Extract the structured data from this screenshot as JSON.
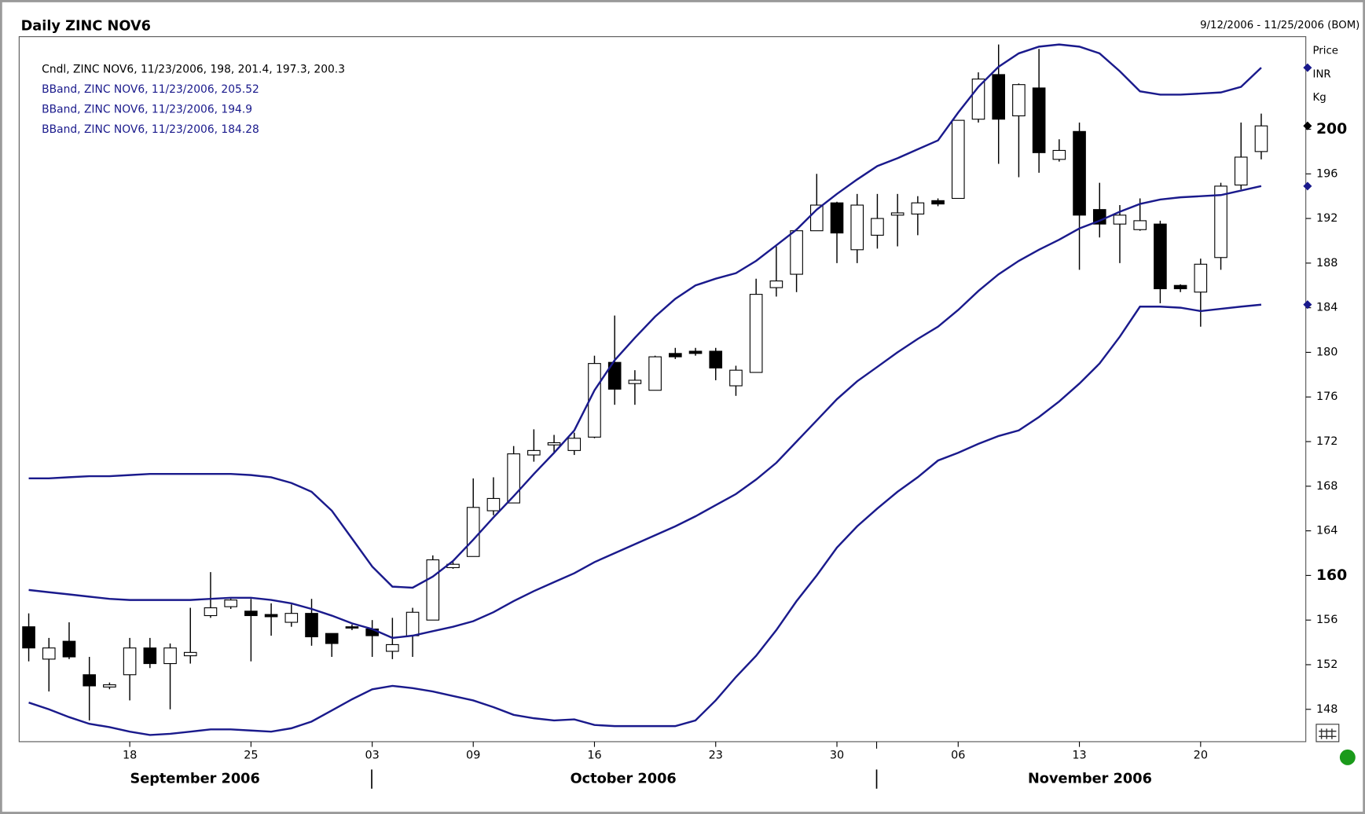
{
  "chart_data": {
    "type": "candlestick",
    "title": "Daily ZINC NOV6",
    "subtitle": "9/12/2006 - 11/25/2006 (BOM)",
    "y_axis_label": [
      "Price",
      "INR",
      "Kg"
    ],
    "legend": [
      "Cndl, ZINC NOV6, 11/23/2006, 198, 201.4, 197.3, 200.3",
      "BBand, ZINC NOV6, 11/23/2006, 205.52",
      "BBand, ZINC NOV6, 11/23/2006, 194.9",
      "BBand, ZINC NOV6, 11/23/2006, 184.28"
    ],
    "months": [
      "September 2006",
      "October 2006",
      "November 2006"
    ],
    "categories": [
      null,
      null,
      null,
      null,
      null,
      "18",
      null,
      null,
      null,
      null,
      null,
      "25",
      null,
      null,
      null,
      null,
      null,
      "03",
      null,
      null,
      null,
      null,
      "09",
      null,
      null,
      null,
      null,
      null,
      "16",
      null,
      null,
      null,
      null,
      null,
      "23",
      null,
      null,
      null,
      null,
      null,
      "30",
      null,
      null,
      null,
      null,
      null,
      "06",
      null,
      null,
      null,
      null,
      null,
      "13",
      null,
      null,
      null,
      null,
      null,
      "20",
      null,
      null,
      null
    ],
    "open": [
      155.4,
      152.5,
      154.1,
      151.1,
      150.0,
      151.1,
      153.5,
      152.1,
      152.8,
      156.4,
      157.2,
      156.8,
      156.5,
      155.8,
      156.6,
      154.8,
      155.4,
      155.2,
      153.2,
      154.6,
      156.0,
      160.7,
      161.7,
      165.8,
      166.5,
      170.8,
      171.7,
      171.2,
      172.4,
      179.1,
      177.2,
      176.6,
      179.9,
      180.1,
      180.1,
      177.0,
      178.2,
      185.8,
      187.0,
      190.9,
      193.4,
      189.2,
      190.5,
      192.3,
      192.4,
      193.6,
      193.8,
      200.9,
      204.9,
      201.2,
      203.7,
      197.3,
      199.8,
      192.8,
      191.5,
      191.0,
      191.5,
      186.0,
      185.4,
      188.5,
      195.0,
      198
    ],
    "high": [
      156.6,
      154.4,
      155.8,
      152.7,
      150.4,
      154.4,
      154.4,
      153.9,
      157.1,
      160.3,
      157.9,
      157.9,
      157.5,
      157.4,
      157.9,
      154.8,
      155.6,
      156.0,
      156.2,
      157.1,
      161.8,
      161.2,
      168.7,
      168.8,
      171.6,
      173.1,
      172.6,
      172.8,
      179.7,
      183.3,
      178.4,
      179.7,
      180.4,
      180.4,
      180.4,
      178.8,
      186.6,
      189.5,
      191.1,
      196.0,
      193.5,
      194.2,
      194.2,
      194.2,
      194.0,
      193.8,
      200.8,
      205.1,
      207.6,
      204.1,
      207.2,
      199.1,
      200.6,
      195.2,
      193.2,
      193.8,
      191.8,
      186.1,
      188.4,
      195.2,
      200.6,
      201.4
    ],
    "low": [
      152.3,
      149.6,
      152.5,
      147.0,
      149.8,
      148.8,
      151.7,
      148.0,
      152.1,
      156.2,
      157.0,
      152.3,
      154.6,
      155.4,
      153.7,
      152.7,
      155.1,
      152.7,
      152.5,
      152.7,
      156.0,
      160.6,
      161.7,
      165.4,
      166.5,
      170.2,
      171.0,
      170.8,
      172.3,
      175.3,
      175.3,
      176.6,
      179.4,
      179.7,
      177.5,
      176.1,
      178.2,
      185.0,
      185.4,
      190.9,
      188.0,
      188.0,
      189.3,
      189.5,
      190.5,
      193.1,
      193.8,
      200.6,
      196.9,
      195.7,
      196.1,
      197.1,
      187.4,
      190.3,
      188.0,
      190.9,
      184.4,
      185.4,
      182.3,
      187.4,
      194.6,
      197.3
    ],
    "close": [
      153.5,
      153.5,
      152.7,
      150.1,
      150.2,
      153.5,
      152.1,
      153.5,
      153.1,
      157.1,
      157.8,
      156.4,
      156.3,
      156.6,
      154.5,
      153.9,
      155.3,
      154.6,
      153.8,
      156.7,
      161.4,
      161.0,
      166.1,
      166.9,
      170.9,
      171.2,
      171.9,
      172.3,
      179.0,
      176.7,
      177.5,
      179.6,
      179.6,
      179.9,
      178.6,
      178.4,
      185.2,
      186.4,
      190.9,
      193.2,
      190.7,
      193.2,
      192.0,
      192.5,
      193.4,
      193.3,
      200.8,
      204.5,
      200.9,
      204.0,
      197.9,
      198.1,
      192.3,
      191.5,
      192.3,
      191.8,
      185.7,
      185.7,
      187.9,
      194.9,
      197.5,
      200.3
    ],
    "up_color": "#ffffff",
    "down_color": "#000000",
    "bands": [
      {
        "color": "#1a1a8c",
        "values": [
          168.7,
          168.7,
          168.8,
          168.9,
          168.9,
          169.0,
          169.1,
          169.1,
          169.1,
          169.1,
          169.1,
          169.0,
          168.8,
          168.3,
          167.5,
          165.8,
          163.3,
          160.8,
          159.0,
          158.9,
          159.9,
          161.3,
          163.2,
          165.2,
          167.1,
          169.1,
          171.0,
          173.0,
          176.6,
          179.3,
          181.3,
          183.2,
          184.8,
          186.0,
          186.6,
          187.1,
          188.2,
          189.6,
          191.0,
          192.8,
          194.2,
          195.5,
          196.7,
          197.4,
          198.2,
          199.0,
          201.5,
          203.8,
          205.6,
          206.8,
          207.4,
          207.6,
          207.4,
          206.8,
          205.2,
          203.4,
          203.1,
          203.1,
          203.2,
          203.3,
          203.8,
          205.52
        ]
      },
      {
        "color": "#1a1a8c",
        "values": [
          158.7,
          158.5,
          158.3,
          158.1,
          157.9,
          157.8,
          157.8,
          157.8,
          157.8,
          157.9,
          158.0,
          158.0,
          157.8,
          157.5,
          157.0,
          156.4,
          155.7,
          155.2,
          154.4,
          154.6,
          155.0,
          155.4,
          155.9,
          156.7,
          157.7,
          158.6,
          159.4,
          160.2,
          161.2,
          162.0,
          162.8,
          163.6,
          164.4,
          165.3,
          166.3,
          167.3,
          168.6,
          170.1,
          172.0,
          173.9,
          175.8,
          177.4,
          178.7,
          180.0,
          181.2,
          182.3,
          183.8,
          185.5,
          187.0,
          188.2,
          189.2,
          190.1,
          191.1,
          191.8,
          192.6,
          193.3,
          193.7,
          193.9,
          194.0,
          194.1,
          194.5,
          194.9
        ]
      },
      {
        "color": "#1a1a8c",
        "values": [
          148.6,
          148.0,
          147.3,
          146.7,
          146.4,
          146.0,
          145.7,
          145.8,
          146.0,
          146.2,
          146.2,
          146.1,
          146.0,
          146.3,
          146.9,
          147.9,
          148.9,
          149.8,
          150.1,
          149.9,
          149.6,
          149.2,
          148.8,
          148.2,
          147.5,
          147.2,
          147.0,
          147.1,
          146.6,
          146.5,
          146.5,
          146.5,
          146.5,
          147.0,
          148.8,
          150.9,
          152.8,
          155.1,
          157.7,
          160.0,
          162.5,
          164.4,
          166.0,
          167.5,
          168.8,
          170.3,
          171.0,
          171.8,
          172.5,
          173.0,
          174.2,
          175.6,
          177.2,
          179.0,
          181.4,
          184.1,
          184.1,
          184.0,
          183.7,
          183.9,
          184.1,
          184.28
        ]
      }
    ],
    "ylim": [
      145.1,
      208.3
    ],
    "yticks": [
      148,
      152,
      156,
      160,
      164,
      168,
      172,
      176,
      180,
      184,
      188,
      192,
      196,
      200
    ]
  }
}
